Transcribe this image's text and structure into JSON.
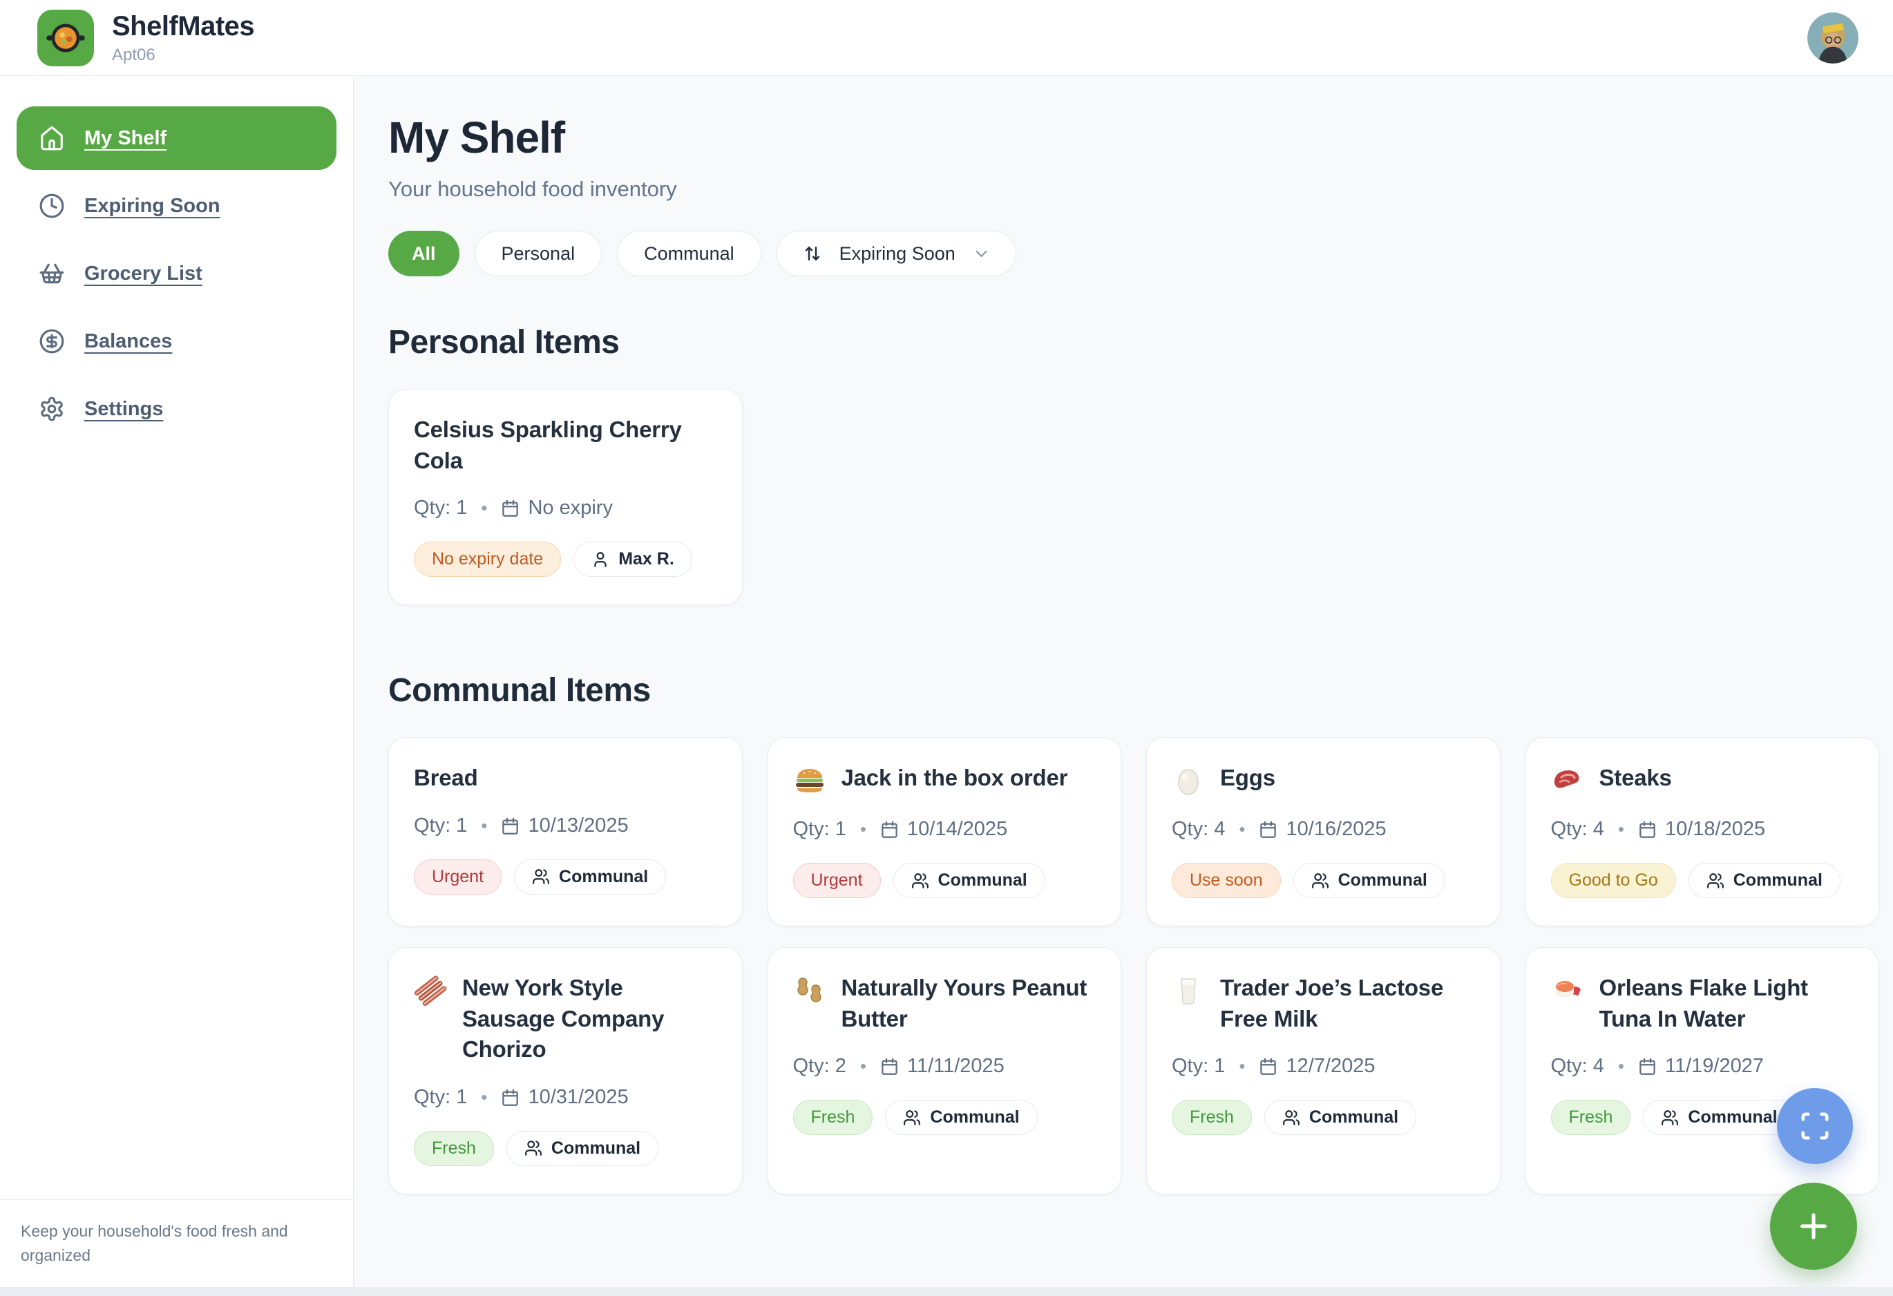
{
  "header": {
    "app_name": "ShelfMates",
    "apt_label": "Apt06",
    "logo_icon": "pan-icon",
    "avatar_icon": "profile-avatar"
  },
  "sidebar": {
    "items": [
      {
        "label": "My Shelf",
        "icon": "home-icon",
        "active": true
      },
      {
        "label": "Expiring Soon",
        "icon": "clock-icon",
        "active": false
      },
      {
        "label": "Grocery List",
        "icon": "basket-icon",
        "active": false
      },
      {
        "label": "Balances",
        "icon": "dollar-icon",
        "active": false
      },
      {
        "label": "Settings",
        "icon": "gear-icon",
        "active": false
      }
    ],
    "footer_text": "Keep your household's food fresh and organized"
  },
  "main": {
    "title": "My Shelf",
    "subtitle": "Your household food inventory",
    "filters": {
      "all": "All",
      "personal": "Personal",
      "communal": "Communal"
    },
    "sort": {
      "label": "Expiring Soon",
      "icon": "sort-arrows-icon",
      "chevron": "chevron-down-icon"
    },
    "sections": {
      "personal": {
        "heading": "Personal Items"
      },
      "communal": {
        "heading": "Communal Items"
      }
    }
  },
  "glyphs": {
    "dot": "•"
  },
  "personal_cards": [
    {
      "food_icon": "",
      "title": "Celsius Sparkling Cherry Cola",
      "qty_label": "Qty: 1",
      "date": "No expiry",
      "status": {
        "label": "No expiry date",
        "type": "no-expiry"
      },
      "owner": {
        "label": "Max R.",
        "icon": "person-icon"
      }
    }
  ],
  "communal_cards": [
    {
      "food_icon": "",
      "title": "Bread",
      "qty_label": "Qty: 1",
      "date": "10/13/2025",
      "status": {
        "label": "Urgent",
        "type": "urgent"
      },
      "owner": {
        "label": "Communal",
        "icon": "people-icon"
      }
    },
    {
      "food_icon": "burger",
      "title": "Jack in the box order",
      "qty_label": "Qty: 1",
      "date": "10/14/2025",
      "status": {
        "label": "Urgent",
        "type": "urgent"
      },
      "owner": {
        "label": "Communal",
        "icon": "people-icon"
      }
    },
    {
      "food_icon": "egg",
      "title": "Eggs",
      "qty_label": "Qty: 4",
      "date": "10/16/2025",
      "status": {
        "label": "Use soon",
        "type": "use-soon"
      },
      "owner": {
        "label": "Communal",
        "icon": "people-icon"
      }
    },
    {
      "food_icon": "steak",
      "title": "Steaks",
      "qty_label": "Qty: 4",
      "date": "10/18/2025",
      "status": {
        "label": "Good to Go",
        "type": "good"
      },
      "owner": {
        "label": "Communal",
        "icon": "people-icon"
      }
    },
    {
      "food_icon": "bacon",
      "title": "New York Style Sausage Company Chorizo",
      "qty_label": "Qty: 1",
      "date": "10/31/2025",
      "status": {
        "label": "Fresh",
        "type": "fresh"
      },
      "owner": {
        "label": "Communal",
        "icon": "people-icon"
      }
    },
    {
      "food_icon": "peanut",
      "title": "Naturally Yours Peanut Butter",
      "qty_label": "Qty: 2",
      "date": "11/11/2025",
      "status": {
        "label": "Fresh",
        "type": "fresh"
      },
      "owner": {
        "label": "Communal",
        "icon": "people-icon"
      }
    },
    {
      "food_icon": "milk",
      "title": "Trader Joe’s Lactose Free Milk",
      "qty_label": "Qty: 1",
      "date": "12/7/2025",
      "status": {
        "label": "Fresh",
        "type": "fresh"
      },
      "owner": {
        "label": "Communal",
        "icon": "people-icon"
      }
    },
    {
      "food_icon": "sushi",
      "title": "Orleans Flake Light Tuna In Water",
      "qty_label": "Qty: 4",
      "date": "11/19/2027",
      "status": {
        "label": "Fresh",
        "type": "fresh"
      },
      "owner": {
        "label": "Communal",
        "icon": "people-icon"
      }
    }
  ],
  "fab": {
    "scan_icon": "scan-icon",
    "add_icon": "plus-icon"
  },
  "colors": {
    "accent_green": "#56a944",
    "fab_blue": "#6e9ce9",
    "urgent_text": "#b23a3a",
    "urgent_bg": "#fdecec",
    "use_soon_text": "#c05a1f",
    "use_soon_bg": "#feeadb",
    "good_text": "#a1791b",
    "good_bg": "#faf3d3",
    "fresh_text": "#44973a",
    "fresh_bg": "#e4f5e0",
    "no_expiry_text": "#c05a1f",
    "no_expiry_bg": "#fdeedd"
  }
}
